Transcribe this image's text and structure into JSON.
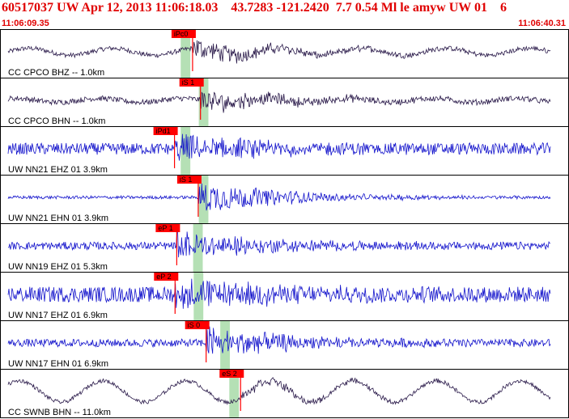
{
  "header": {
    "title": "60517037 UW Apr 12, 2013 11:06:18.03    43.7283 -121.2420  7.7 0.54 Ml le amyw UW 01    6",
    "start_time": "11:06:09.35",
    "end_time": "11:06:40.31"
  },
  "colors": {
    "header_text": "#e00000",
    "vertical_trace": "#2a1a4a",
    "horizontal_trace": "#1515cc",
    "pick_box": "#ff0000",
    "window_band": "#a8dba8",
    "panel_border": "#000000"
  },
  "chart_data": {
    "type": "seismogram",
    "x_range_time": [
      "11:06:09.35",
      "11:06:40.31"
    ],
    "traces": [
      {
        "label": "CC CPCO BHZ -- 1.0km",
        "color": "dark",
        "pick": "iPc0",
        "pick_time_frac": 0.338,
        "window_frac": [
          0.317,
          0.334
        ],
        "noise": 0.12,
        "burst": 0.55,
        "swell": 0.18
      },
      {
        "label": "CC CPCO BHN -- 1.0km",
        "color": "dark",
        "pick": "iS 1",
        "pick_time_frac": 0.352,
        "window_frac": [
          0.349,
          0.366
        ],
        "noise": 0.14,
        "burst": 0.55,
        "swell": 0.1
      },
      {
        "label": "UW NN21 EHZ 01 3.9km",
        "color": "blue",
        "pick": "iPd1",
        "pick_time_frac": 0.306,
        "window_frac": [
          0.317,
          0.334
        ],
        "noise": 0.3,
        "burst": 0.7,
        "swell": 0.0
      },
      {
        "label": "UW NN21 EHN 01 3.9km",
        "color": "blue",
        "pick": "iS 1",
        "pick_time_frac": 0.348,
        "window_frac": [
          0.349,
          0.366
        ],
        "noise": 0.08,
        "burst": 0.85,
        "swell": 0.0
      },
      {
        "label": "UW NN19 EHZ 01 5.3km",
        "color": "blue",
        "pick": "eP 1",
        "pick_time_frac": 0.31,
        "window_frac": [
          0.339,
          0.356
        ],
        "noise": 0.2,
        "burst": 0.75,
        "swell": 0.0
      },
      {
        "label": "UW NN17 EHZ 01 6.9km",
        "color": "blue",
        "pick": "eP 2",
        "pick_time_frac": 0.307,
        "window_frac": [
          0.34,
          0.357
        ],
        "noise": 0.4,
        "burst": 0.7,
        "swell": 0.0
      },
      {
        "label": "UW NN17 EHN 01 6.9km",
        "color": "blue",
        "pick": "iS 0",
        "pick_time_frac": 0.362,
        "window_frac": [
          0.387,
          0.404
        ],
        "noise": 0.2,
        "burst": 0.8,
        "swell": 0.0
      },
      {
        "label": "CC SWNB BHN -- 11.0km",
        "color": "dark",
        "pick": "eS 2",
        "pick_time_frac": 0.423,
        "window_frac": [
          0.403,
          0.42
        ],
        "noise": 0.1,
        "burst": 0.25,
        "swell": 0.55
      }
    ]
  }
}
